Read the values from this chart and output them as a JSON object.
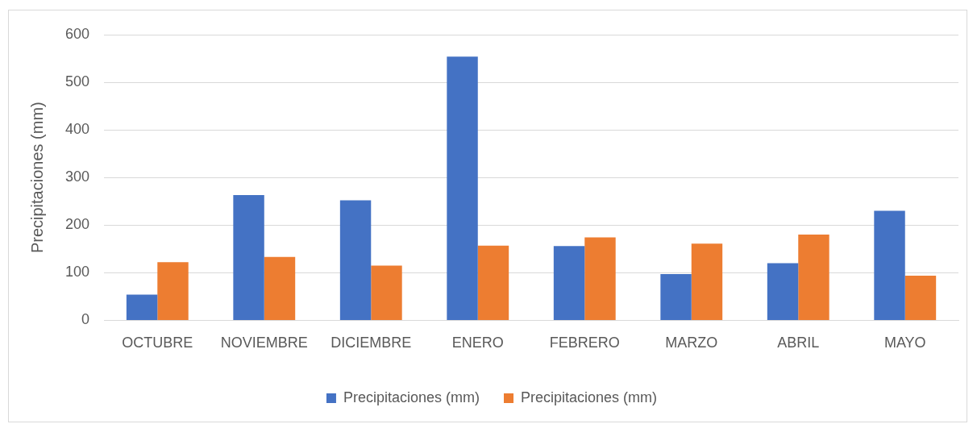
{
  "chart_data": {
    "type": "bar",
    "ylabel": "Precipitaciones (mm)",
    "categories": [
      "OCTUBRE",
      "NOVIEMBRE",
      "DICIEMBRE",
      "ENERO",
      "FEBRERO",
      "MARZO",
      "ABRIL",
      "MAYO"
    ],
    "series": [
      {
        "name": "Precipitaciones (mm)",
        "color": "#4472c4",
        "values": [
          54,
          263,
          252,
          554,
          156,
          97,
          120,
          230
        ]
      },
      {
        "name": "Precipitaciones (mm)",
        "color": "#ed7d31",
        "values": [
          122,
          133,
          115,
          157,
          174,
          161,
          180,
          94
        ]
      }
    ],
    "ylim": [
      0,
      600
    ],
    "yticks": [
      0,
      100,
      200,
      300,
      400,
      500,
      600
    ],
    "grid": "y",
    "legend": "bottom"
  }
}
